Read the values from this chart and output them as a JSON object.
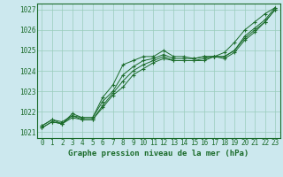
{
  "bg_color": "#cce8ee",
  "grid_color": "#99ccbb",
  "line_color": "#1a6b2a",
  "title": "Graphe pression niveau de la mer (hPa)",
  "xlabel_hours": [
    0,
    1,
    2,
    3,
    4,
    5,
    6,
    7,
    8,
    9,
    10,
    11,
    12,
    13,
    14,
    15,
    16,
    17,
    18,
    19,
    20,
    21,
    22,
    23
  ],
  "yticks": [
    1021,
    1022,
    1023,
    1024,
    1025,
    1026,
    1027
  ],
  "ylim": [
    1020.7,
    1027.3
  ],
  "xlim": [
    -0.5,
    23.5
  ],
  "series": [
    [
      1021.3,
      1021.6,
      1021.5,
      1021.8,
      1021.7,
      1021.7,
      1022.7,
      1023.3,
      1024.3,
      1024.5,
      1024.7,
      1024.7,
      1025.0,
      1024.7,
      1024.7,
      1024.6,
      1024.7,
      1024.7,
      1024.9,
      1025.4,
      1026.0,
      1026.4,
      1026.8,
      1027.1
    ],
    [
      1021.3,
      1021.6,
      1021.4,
      1021.9,
      1021.7,
      1021.7,
      1022.5,
      1023.0,
      1023.8,
      1024.2,
      1024.5,
      1024.6,
      1024.8,
      1024.6,
      1024.6,
      1024.6,
      1024.7,
      1024.7,
      1024.7,
      1025.0,
      1025.7,
      1026.1,
      1026.5,
      1027.1
    ],
    [
      1021.2,
      1021.5,
      1021.4,
      1021.8,
      1021.6,
      1021.6,
      1022.3,
      1022.9,
      1023.5,
      1024.0,
      1024.3,
      1024.5,
      1024.7,
      1024.5,
      1024.5,
      1024.5,
      1024.6,
      1024.7,
      1024.7,
      1025.0,
      1025.6,
      1026.0,
      1026.4,
      1027.0
    ],
    [
      1021.2,
      1021.5,
      1021.4,
      1021.7,
      1021.6,
      1021.6,
      1022.2,
      1022.8,
      1023.2,
      1023.8,
      1024.1,
      1024.4,
      1024.6,
      1024.5,
      1024.5,
      1024.5,
      1024.5,
      1024.7,
      1024.6,
      1024.9,
      1025.5,
      1025.9,
      1026.4,
      1027.0
    ]
  ]
}
